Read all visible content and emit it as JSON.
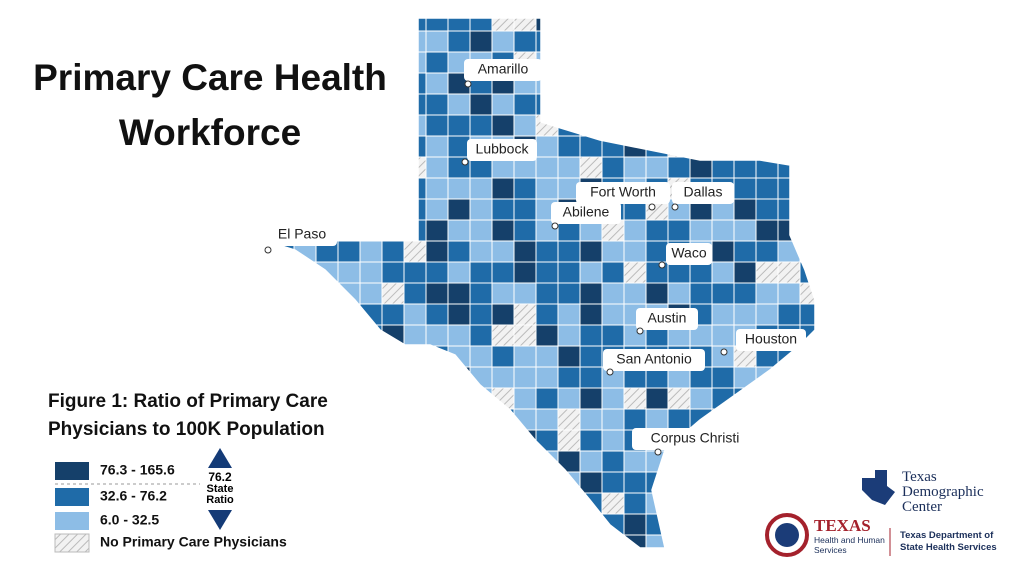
{
  "title": "Primary Care Health Workforce",
  "figure_caption": "Figure 1: Ratio of Primary Care Physicians to 100K Population",
  "legend": [
    {
      "label": "76.3 - 165.6",
      "color": "#15406a"
    },
    {
      "label": "32.6 - 76.2",
      "color": "#1f6ba8"
    },
    {
      "label": "6.0 - 32.5",
      "color": "#8dbde6"
    },
    {
      "label": "No Primary Care Physicians",
      "pattern": "hatch"
    }
  ],
  "state_ratio": {
    "value": "76.2",
    "label": "State Ratio"
  },
  "cities": [
    "Amarillo",
    "Lubbock",
    "El Paso",
    "Fort Worth",
    "Dallas",
    "Abilene",
    "Waco",
    "Austin",
    "Houston",
    "San Antonio",
    "Corpus Christi"
  ],
  "logos": {
    "tdc": "Texas Demographic Center",
    "hhs_name": "TEXAS",
    "hhs_sub": "Health and Human Services",
    "dshs": "Texas Department of State Health Services"
  }
}
